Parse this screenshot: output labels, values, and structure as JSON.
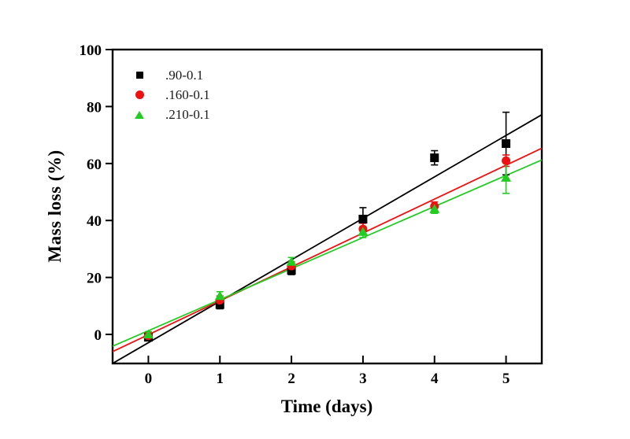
{
  "chart_data": {
    "type": "scatter",
    "title": "",
    "xlabel": "Time (days)",
    "ylabel": "Mass loss (%)",
    "xlim": [
      -0.5,
      5.5
    ],
    "ylim": [
      -10.2,
      100
    ],
    "xticks": [
      0,
      1,
      2,
      3,
      4,
      5
    ],
    "yticks": [
      0,
      20,
      40,
      60,
      80,
      100
    ],
    "grid": false,
    "legend_position": "top-left",
    "x": [
      0,
      1,
      2,
      3,
      4,
      5
    ],
    "series": [
      {
        "name": ".90-0.1",
        "marker": "square",
        "color": "#000000",
        "values": [
          -1,
          10.5,
          22.5,
          40.5,
          62,
          67
        ],
        "errors": [
          1,
          1.5,
          1.5,
          4,
          2.5,
          11
        ],
        "fit": {
          "slope": 14.55,
          "intercept": -2.9
        }
      },
      {
        "name": ".160-0.1",
        "marker": "circle",
        "color": "#ee1111",
        "values": [
          -0.5,
          12,
          24,
          37,
          45,
          61
        ],
        "errors": [
          1,
          1.5,
          1.5,
          2,
          1.5,
          2
        ],
        "fit": {
          "slope": 11.9,
          "intercept": -0.1
        }
      },
      {
        "name": ".210-0.1",
        "marker": "triangle",
        "color": "#22cc22",
        "values": [
          0,
          13.5,
          25.5,
          36,
          44,
          55
        ],
        "errors": [
          1,
          1.5,
          1.5,
          2,
          1.5,
          5.5
        ],
        "fit": {
          "slope": 10.9,
          "intercept": 1.3
        }
      }
    ]
  }
}
